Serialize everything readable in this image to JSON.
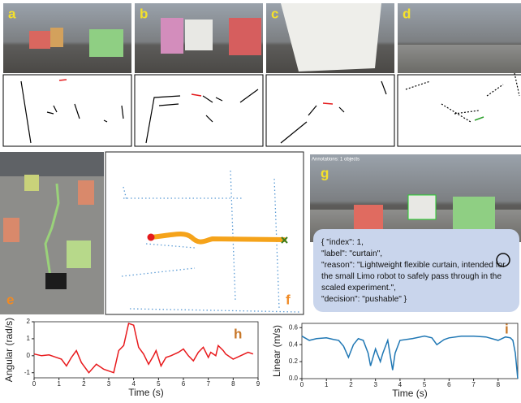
{
  "panel_labels": [
    "a",
    "b",
    "c",
    "d",
    "e",
    "f",
    "g",
    "h",
    "i"
  ],
  "annotation_header": "Annotations: 1 objects",
  "llm_output": [
    "{ \"index\": 1,",
    "\"label\": \"curtain\",",
    "\"reason\": \"Lightweight flexible curtain, intended for",
    "the small Limo robot to safely pass through in the",
    "scaled experiment.\",",
    "\"decision\": \"pushable\" }"
  ],
  "chart_data": [
    {
      "type": "line",
      "xlabel": "Time (s)",
      "ylabel": "Angular (rad/s)",
      "color": "#e8191c",
      "x": [
        0,
        0.3,
        0.6,
        0.9,
        1.1,
        1.3,
        1.5,
        1.7,
        1.9,
        2.2,
        2.5,
        2.8,
        3.0,
        3.2,
        3.4,
        3.6,
        3.8,
        4.0,
        4.2,
        4.4,
        4.6,
        4.8,
        4.9,
        5.1,
        5.3,
        5.5,
        5.8,
        6.0,
        6.2,
        6.4,
        6.6,
        6.8,
        7.0,
        7.1,
        7.3,
        7.4,
        7.6,
        7.7,
        8.0,
        8.3,
        8.6,
        8.8
      ],
      "values": [
        0.1,
        0.0,
        0.05,
        -0.1,
        -0.2,
        -0.6,
        -0.1,
        0.3,
        -0.4,
        -1.0,
        -0.5,
        -0.8,
        -0.9,
        -1.0,
        0.3,
        0.6,
        1.9,
        1.8,
        0.5,
        0.1,
        -0.5,
        0.0,
        0.3,
        -0.6,
        -0.1,
        0.0,
        0.2,
        0.4,
        0.0,
        -0.3,
        0.2,
        0.5,
        -0.1,
        0.2,
        0.0,
        0.6,
        0.3,
        0.1,
        -0.2,
        0.0,
        0.2,
        0.1
      ],
      "xlim": [
        0,
        9
      ],
      "ylim": [
        -1.3,
        2
      ],
      "xticks": [
        0,
        1,
        2,
        3,
        4,
        5,
        6,
        7,
        8,
        9
      ],
      "yticks": [
        -1,
        0,
        1,
        2
      ]
    },
    {
      "type": "line",
      "xlabel": "Time (s)",
      "ylabel": "Linear (m/s)",
      "color": "#1f77b4",
      "x": [
        0,
        0.3,
        0.6,
        1.0,
        1.3,
        1.5,
        1.7,
        1.9,
        2.1,
        2.3,
        2.5,
        2.7,
        2.8,
        3.0,
        3.2,
        3.3,
        3.5,
        3.7,
        3.8,
        4.0,
        4.5,
        5.0,
        5.3,
        5.5,
        5.8,
        6.0,
        6.5,
        7.0,
        7.5,
        8.0,
        8.3,
        8.5,
        8.6,
        8.7,
        8.8
      ],
      "values": [
        0.5,
        0.45,
        0.47,
        0.48,
        0.46,
        0.45,
        0.38,
        0.25,
        0.4,
        0.47,
        0.45,
        0.3,
        0.15,
        0.35,
        0.2,
        0.3,
        0.45,
        0.1,
        0.3,
        0.45,
        0.47,
        0.5,
        0.48,
        0.4,
        0.46,
        0.48,
        0.5,
        0.5,
        0.49,
        0.45,
        0.49,
        0.48,
        0.45,
        0.3,
        0.0
      ],
      "xlim": [
        0,
        8.8
      ],
      "ylim": [
        0,
        0.65
      ],
      "xticks": [
        0,
        1,
        2,
        3,
        4,
        5,
        6,
        7,
        8
      ],
      "yticks": [
        {
          "value": 0,
          "label": "0.0"
        },
        0.2,
        0.4,
        0.6
      ]
    }
  ]
}
